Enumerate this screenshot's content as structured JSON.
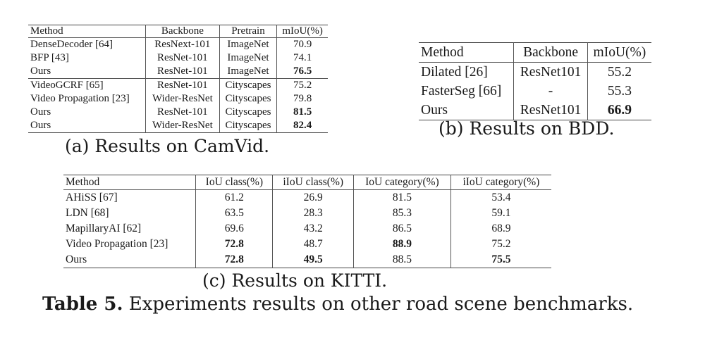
{
  "table_a": {
    "caption": "(a) Results on CamVid.",
    "headers": [
      "Method",
      "Backbone",
      "Pretrain",
      "mIoU(%)"
    ],
    "rows": [
      {
        "method": "DenseDecoder [64]",
        "backbone": "ResNext-101",
        "pretrain": "ImageNet",
        "miou": "70.9",
        "bold": false
      },
      {
        "method": "BFP [43]",
        "backbone": "ResNet-101",
        "pretrain": "ImageNet",
        "miou": "74.1",
        "bold": false
      },
      {
        "method": "Ours",
        "backbone": "ResNet-101",
        "pretrain": "ImageNet",
        "miou": "76.5",
        "bold": true
      },
      {
        "method": "VideoGCRF [65]",
        "backbone": "ResNet-101",
        "pretrain": "Cityscapes",
        "miou": "75.2",
        "bold": false
      },
      {
        "method": "Video Propagation [23]",
        "backbone": "Wider-ResNet",
        "pretrain": "Cityscapes",
        "miou": "79.8",
        "bold": false
      },
      {
        "method": "Ours",
        "backbone": "ResNet-101",
        "pretrain": "Cityscapes",
        "miou": "81.5",
        "bold": true
      },
      {
        "method": "Ours",
        "backbone": "Wider-ResNet",
        "pretrain": "Cityscapes",
        "miou": "82.4",
        "bold": true
      }
    ]
  },
  "table_b": {
    "caption": "(b) Results on BDD.",
    "headers": [
      "Method",
      "Backbone",
      "mIoU(%)"
    ],
    "rows": [
      {
        "method": "Dilated [26]",
        "backbone": "ResNet101",
        "miou": "55.2",
        "bold": false
      },
      {
        "method": "FasterSeg [66]",
        "backbone": "-",
        "miou": "55.3",
        "bold": false
      },
      {
        "method": "Ours",
        "backbone": "ResNet101",
        "miou": "66.9",
        "bold": true
      }
    ]
  },
  "table_c": {
    "caption": "(c) Results on KITTI.",
    "headers": [
      "Method",
      "IoU class(%)",
      "iIoU class(%)",
      "IoU category(%)",
      "iIoU category(%)"
    ],
    "rows": [
      {
        "method": "AHiSS [67]",
        "iou_class": "61.2",
        "iiou_class": "26.9",
        "iou_cat": "81.5",
        "iiou_cat": "53.4"
      },
      {
        "method": "LDN [68]",
        "iou_class": "63.5",
        "iiou_class": "28.3",
        "iou_cat": "85.3",
        "iiou_cat": "59.1"
      },
      {
        "method": "MapillaryAI [62]",
        "iou_class": "69.6",
        "iiou_class": "43.2",
        "iou_cat": "86.5",
        "iiou_cat": "68.9"
      },
      {
        "method": "Video Propagation [23]",
        "iou_class": "72.8",
        "iiou_class": "48.7",
        "iou_cat": "88.9",
        "iiou_cat": "75.2"
      },
      {
        "method": "Ours",
        "iou_class": "72.8",
        "iiou_class": "49.5",
        "iou_cat": "88.5",
        "iiou_cat": "75.5"
      }
    ],
    "bold_cells": {
      "3": [
        "iou_class",
        "iou_cat"
      ],
      "4": [
        "iou_class",
        "iiou_class",
        "iiou_cat"
      ]
    }
  },
  "main_caption": {
    "label": "Table 5.",
    "text": " Experiments results on other road scene benchmarks."
  }
}
